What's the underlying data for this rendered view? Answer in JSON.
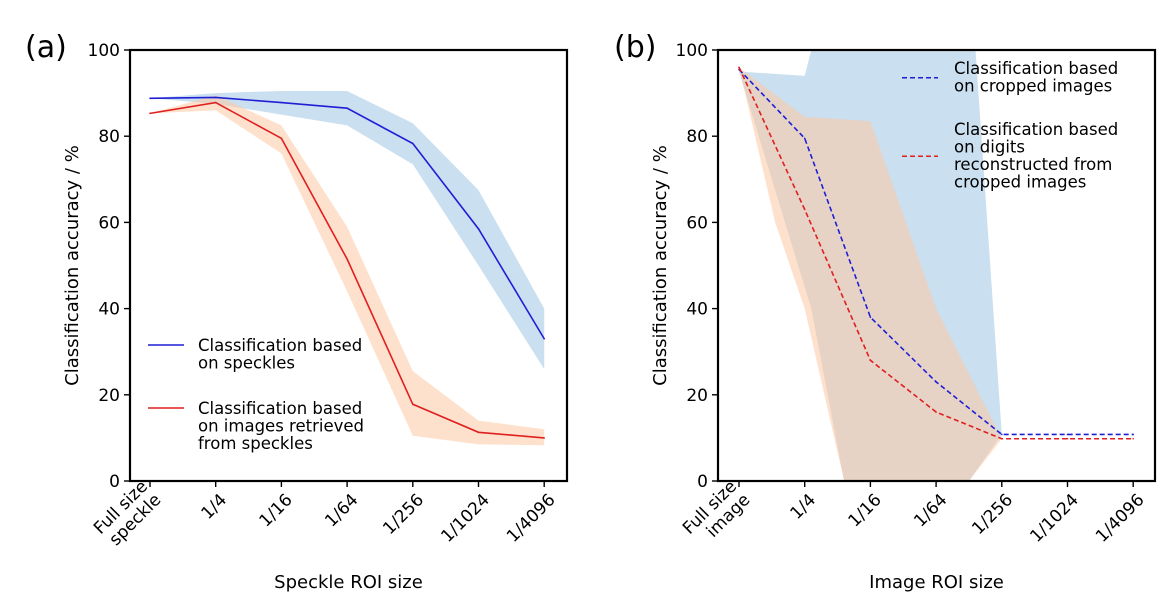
{
  "chart_data": [
    {
      "panel_label": "(a)",
      "type": "line",
      "xlabel": "Speckle ROI size",
      "ylabel": "Classification accuracy / %",
      "ylim": [
        0,
        100
      ],
      "yticks": [
        "0",
        "20",
        "40",
        "60",
        "80",
        "100"
      ],
      "grid": false,
      "categories": [
        [
          "Full size",
          "speckle"
        ],
        [
          "1/4"
        ],
        [
          "1/16"
        ],
        [
          "1/64"
        ],
        [
          "1/256"
        ],
        [
          "1/1024"
        ],
        [
          "1/4096"
        ]
      ],
      "legend_position": "lower-left",
      "series": [
        {
          "legend": [
            "Classification based",
            "on speckles"
          ],
          "color": "#1f1fd6",
          "band_color": "#9ec5e2",
          "dash": false,
          "values": [
            88.8,
            89.0,
            87.8,
            86.5,
            78.3,
            58.5,
            33.0
          ],
          "upper": [
            88.8,
            90.0,
            90.5,
            90.5,
            83.0,
            67.5,
            40.0
          ],
          "lower": [
            88.8,
            87.5,
            85.0,
            82.5,
            73.5,
            50.0,
            26.0
          ]
        },
        {
          "legend": [
            "Classification based",
            "on images retrieved",
            "from speckles"
          ],
          "color": "#e01f1f",
          "band_color": "#fdc9a4",
          "dash": false,
          "values": [
            85.3,
            87.8,
            79.5,
            51.5,
            17.8,
            11.3,
            10.0
          ],
          "upper": [
            85.3,
            89.5,
            82.5,
            59.0,
            25.5,
            14.0,
            12.0
          ],
          "lower": [
            85.3,
            86.0,
            76.0,
            44.0,
            10.5,
            8.5,
            8.3
          ]
        }
      ]
    },
    {
      "panel_label": "(b)",
      "type": "line",
      "xlabel": "Image ROI size",
      "ylabel": "Classification accuracy / %",
      "ylim": [
        0,
        100
      ],
      "yticks": [
        "0",
        "20",
        "40",
        "60",
        "80",
        "100"
      ],
      "grid": false,
      "categories": [
        [
          "Full size",
          "image"
        ],
        [
          "1/4"
        ],
        [
          "1/16"
        ],
        [
          "1/64"
        ],
        [
          "1/256"
        ],
        [
          "1/1024"
        ],
        [
          "1/4096"
        ]
      ],
      "legend_position": "top-right",
      "series": [
        {
          "legend": [
            "Classification based",
            "on cropped images"
          ],
          "color": "#1f1fd6",
          "band_color": "#9ec5e2",
          "dash": true,
          "values": [
            95.5,
            79.5,
            38.0,
            23.0,
            10.8,
            10.8,
            10.8
          ],
          "band_upper": [
            [
              0,
              95.0
            ],
            [
              1,
              94.0
            ],
            [
              1.1,
              100
            ],
            [
              3.6,
              100
            ],
            [
              4.0,
              10.8
            ]
          ],
          "band_lower": [
            [
              0,
              95.0
            ],
            [
              1.1,
              40.0
            ],
            [
              1.6,
              0
            ],
            [
              3.5,
              0
            ],
            [
              4.0,
              10.8
            ]
          ]
        },
        {
          "legend": [
            "Classification based",
            "on  digits",
            "reconstructed from",
            "cropped images"
          ],
          "color": "#e01f1f",
          "band_color": "#fdc9a4",
          "dash": true,
          "values": [
            96.0,
            63.0,
            28.0,
            16.0,
            9.8,
            9.8,
            9.8
          ],
          "band_upper": [
            [
              0,
              96.0
            ],
            [
              1,
              84.5
            ],
            [
              2,
              83.5
            ],
            [
              3,
              40.0
            ],
            [
              4,
              9.8
            ]
          ],
          "band_lower": [
            [
              0,
              96.0
            ],
            [
              0.55,
              60.0
            ],
            [
              1,
              40.0
            ],
            [
              1.6,
              0
            ],
            [
              3.5,
              0
            ],
            [
              4.0,
              9.8
            ]
          ]
        }
      ]
    }
  ]
}
